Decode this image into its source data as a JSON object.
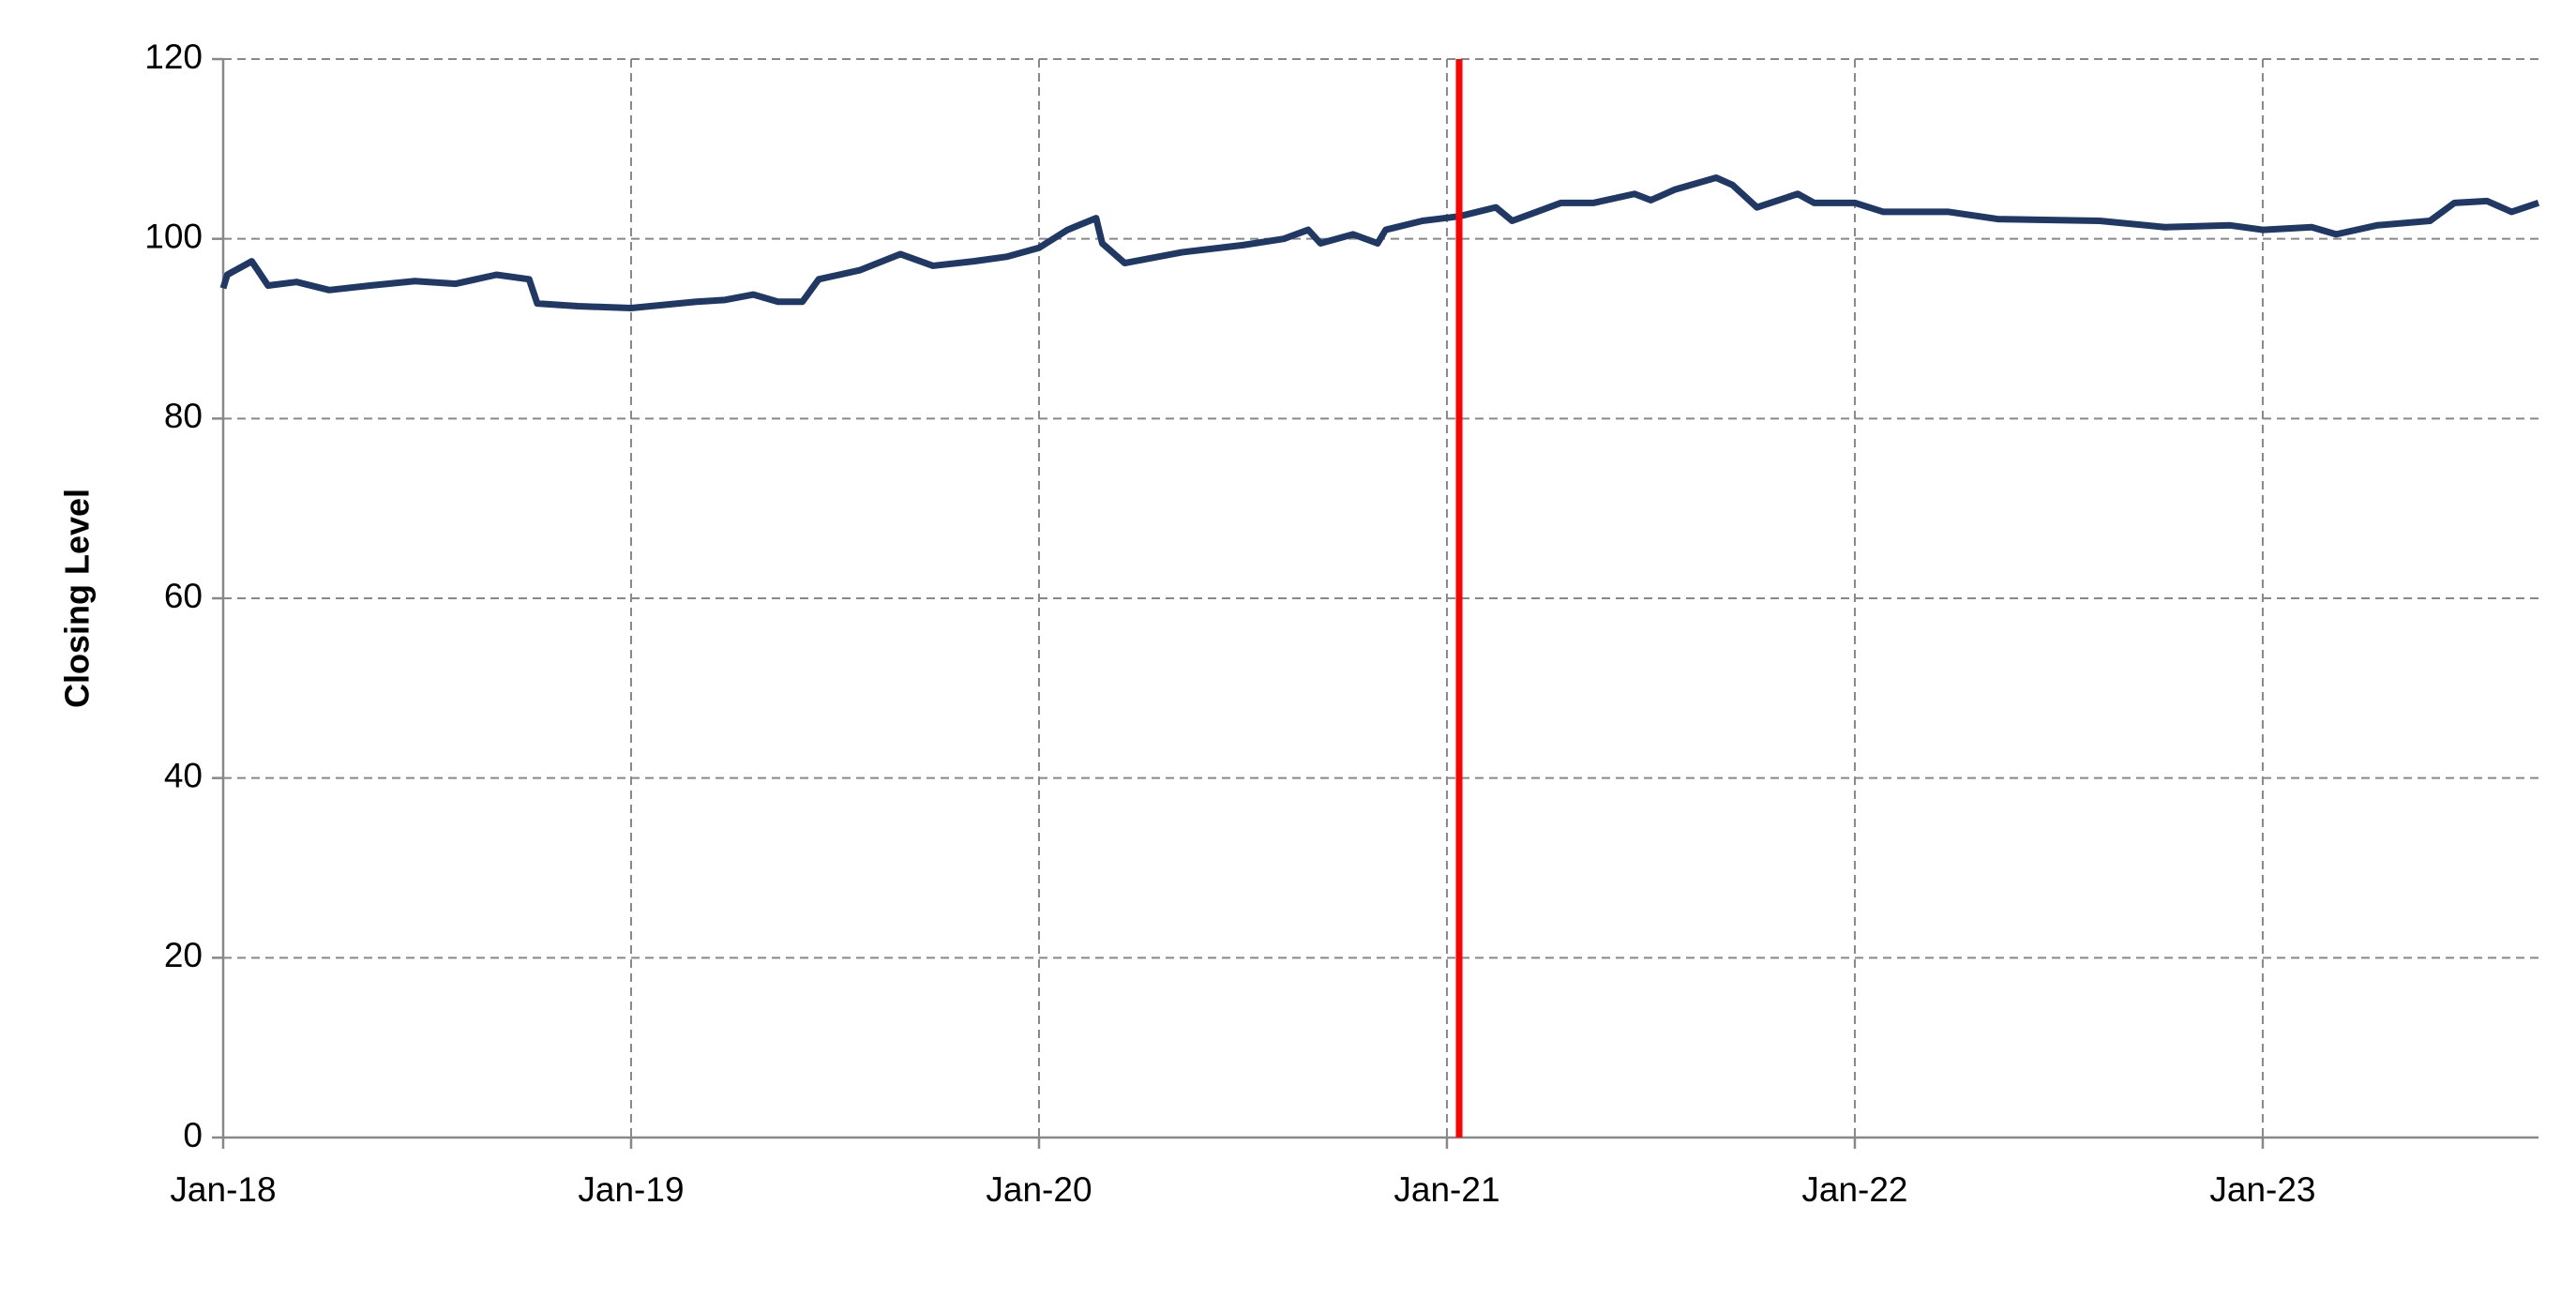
{
  "chart_data": {
    "type": "line",
    "y_label": "Closing Level",
    "x": [
      2018.0,
      2018.01,
      2018.07,
      2018.11,
      2018.18,
      2018.26,
      2018.36,
      2018.47,
      2018.57,
      2018.67,
      2018.75,
      2018.77,
      2018.87,
      2019.0,
      2019.16,
      2019.23,
      2019.3,
      2019.36,
      2019.42,
      2019.46,
      2019.56,
      2019.66,
      2019.74,
      2019.84,
      2019.92,
      2020.0,
      2020.07,
      2020.14,
      2020.155,
      2020.21,
      2020.35,
      2020.5,
      2020.6,
      2020.66,
      2020.69,
      2020.77,
      2020.83,
      2020.85,
      2020.94,
      2021.03,
      2021.12,
      2021.16,
      2021.22,
      2021.28,
      2021.36,
      2021.46,
      2021.5,
      2021.56,
      2021.66,
      2021.7,
      2021.76,
      2021.86,
      2021.9,
      2022.0,
      2022.07,
      2022.23,
      2022.35,
      2022.6,
      2022.76,
      2022.92,
      2023.0,
      2023.12,
      2023.18,
      2023.28,
      2023.41,
      2023.47,
      2023.55,
      2023.61,
      2023.676
    ],
    "values": [
      94.5,
      96,
      97.5,
      94.8,
      95.2,
      94.3,
      94.8,
      95.3,
      95,
      96,
      95.5,
      92.8,
      92.5,
      92.3,
      93,
      93.2,
      93.8,
      93,
      93,
      95.5,
      96.5,
      98.3,
      97,
      97.5,
      98,
      99,
      101,
      102.3,
      99.5,
      97.3,
      98.5,
      99.3,
      100,
      101,
      99.5,
      100.5,
      99.5,
      101,
      102,
      102.5,
      103.5,
      102,
      103,
      104,
      104,
      105,
      104.3,
      105.5,
      106.8,
      106,
      103.5,
      105,
      104,
      104,
      103,
      103,
      102.2,
      102,
      101.3,
      101.5,
      101,
      101.3,
      100.5,
      101.5,
      102,
      104,
      104.2,
      103,
      104
    ],
    "color": "#1f3864",
    "xlim": [
      2018,
      2023.676
    ],
    "xticks": [
      {
        "value": 2018,
        "label": "Jan-18"
      },
      {
        "value": 2019,
        "label": "Jan-19"
      },
      {
        "value": 2020,
        "label": "Jan-20"
      },
      {
        "value": 2021,
        "label": "Jan-21"
      },
      {
        "value": 2022,
        "label": "Jan-22"
      },
      {
        "value": 2023,
        "label": "Jan-23"
      }
    ],
    "ylim": [
      0,
      120
    ],
    "yticks": [
      0,
      20,
      40,
      60,
      80,
      100,
      120
    ],
    "grid": true,
    "vline": {
      "x": 2021.03,
      "color": "#ff0000"
    }
  }
}
